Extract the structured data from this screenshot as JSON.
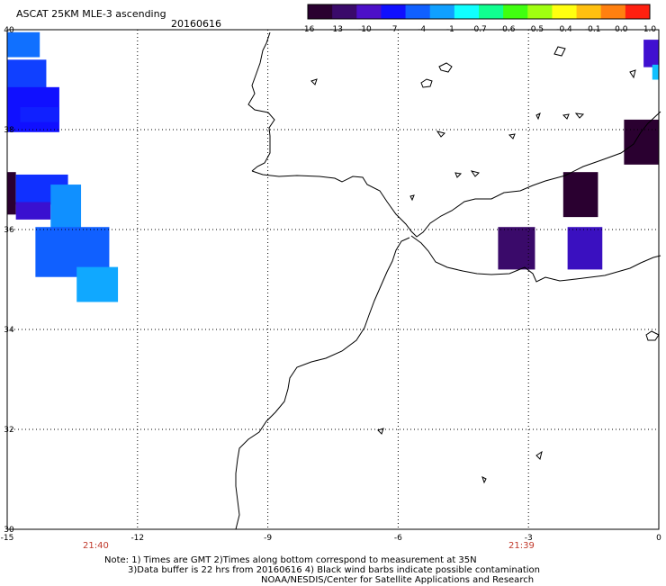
{
  "header": {
    "title": "ASCAT 25KM MLE-3 ascending",
    "date": "20160616"
  },
  "colorbar": {
    "colors": [
      "#2a0030",
      "#3a0a6a",
      "#4c10c8",
      "#1010ff",
      "#1060ff",
      "#10a0ff",
      "#10ffff",
      "#10ff90",
      "#40ff10",
      "#a0ff10",
      "#ffff10",
      "#ffc010",
      "#ff8010",
      "#ff2010"
    ],
    "labels": [
      "-16",
      "-13",
      "-10",
      "-7",
      "-4",
      "-1",
      "-0.7",
      "-0.6",
      "-0.5",
      "-0.4",
      "-0.1",
      "0.0",
      "1.0"
    ]
  },
  "map": {
    "lon_range": [
      -15,
      0
    ],
    "lat_range": [
      30,
      40
    ],
    "lon_labels": [
      "-15",
      "-12",
      "-9",
      "-6",
      "-3",
      "0"
    ],
    "lat_labels": [
      "40",
      "38",
      "36",
      "34",
      "32",
      "30"
    ],
    "times": [
      "21:40",
      "21:39"
    ],
    "cells": [
      {
        "lon": -15.0,
        "lat": 39.95,
        "w": 0.75,
        "h": 0.5,
        "color": "#1070ff"
      },
      {
        "lon": -15.0,
        "lat": 39.4,
        "w": 0.9,
        "h": 0.6,
        "color": "#1040ff"
      },
      {
        "lon": -15.0,
        "lat": 38.85,
        "w": 1.2,
        "h": 0.9,
        "color": "#1010ff"
      },
      {
        "lon": -14.7,
        "lat": 38.45,
        "w": 0.9,
        "h": 0.3,
        "color": "#1020ff"
      },
      {
        "lon": -15.0,
        "lat": 37.15,
        "w": 0.2,
        "h": 0.85,
        "color": "#2a0030"
      },
      {
        "lon": -14.8,
        "lat": 37.1,
        "w": 1.2,
        "h": 0.6,
        "color": "#1030ff"
      },
      {
        "lon": -14.8,
        "lat": 36.55,
        "w": 0.8,
        "h": 0.35,
        "color": "#3a10d0"
      },
      {
        "lon": -14.0,
        "lat": 36.9,
        "w": 0.7,
        "h": 0.9,
        "color": "#1090ff"
      },
      {
        "lon": -14.35,
        "lat": 36.05,
        "w": 1.7,
        "h": 1.0,
        "color": "#1060ff"
      },
      {
        "lon": -13.4,
        "lat": 35.25,
        "w": 0.95,
        "h": 0.7,
        "color": "#10a8ff"
      },
      {
        "lon": -3.7,
        "lat": 36.05,
        "w": 0.85,
        "h": 0.85,
        "color": "#3a0a6a"
      },
      {
        "lon": -2.1,
        "lat": 36.05,
        "w": 0.8,
        "h": 0.85,
        "color": "#3a10c0"
      },
      {
        "lon": -2.2,
        "lat": 37.15,
        "w": 0.8,
        "h": 0.9,
        "color": "#2a0030"
      },
      {
        "lon": -0.8,
        "lat": 38.2,
        "w": 0.8,
        "h": 0.9,
        "color": "#2a0030"
      },
      {
        "lon": -0.35,
        "lat": 39.8,
        "w": 0.35,
        "h": 0.55,
        "color": "#4010d0"
      },
      {
        "lon": -0.15,
        "lat": 39.3,
        "w": 0.15,
        "h": 0.3,
        "color": "#10c0ff"
      }
    ]
  },
  "footer": {
    "note1": "Note: 1) Times are GMT 2)Times along bottom correspond to measurement at 35N",
    "note2": "3)Data buffer is 22 hrs from 20160616 4) Black wind barbs indicate possible contamination",
    "credit": "NOAA/NESDIS/Center for Satellite Applications and Research"
  }
}
